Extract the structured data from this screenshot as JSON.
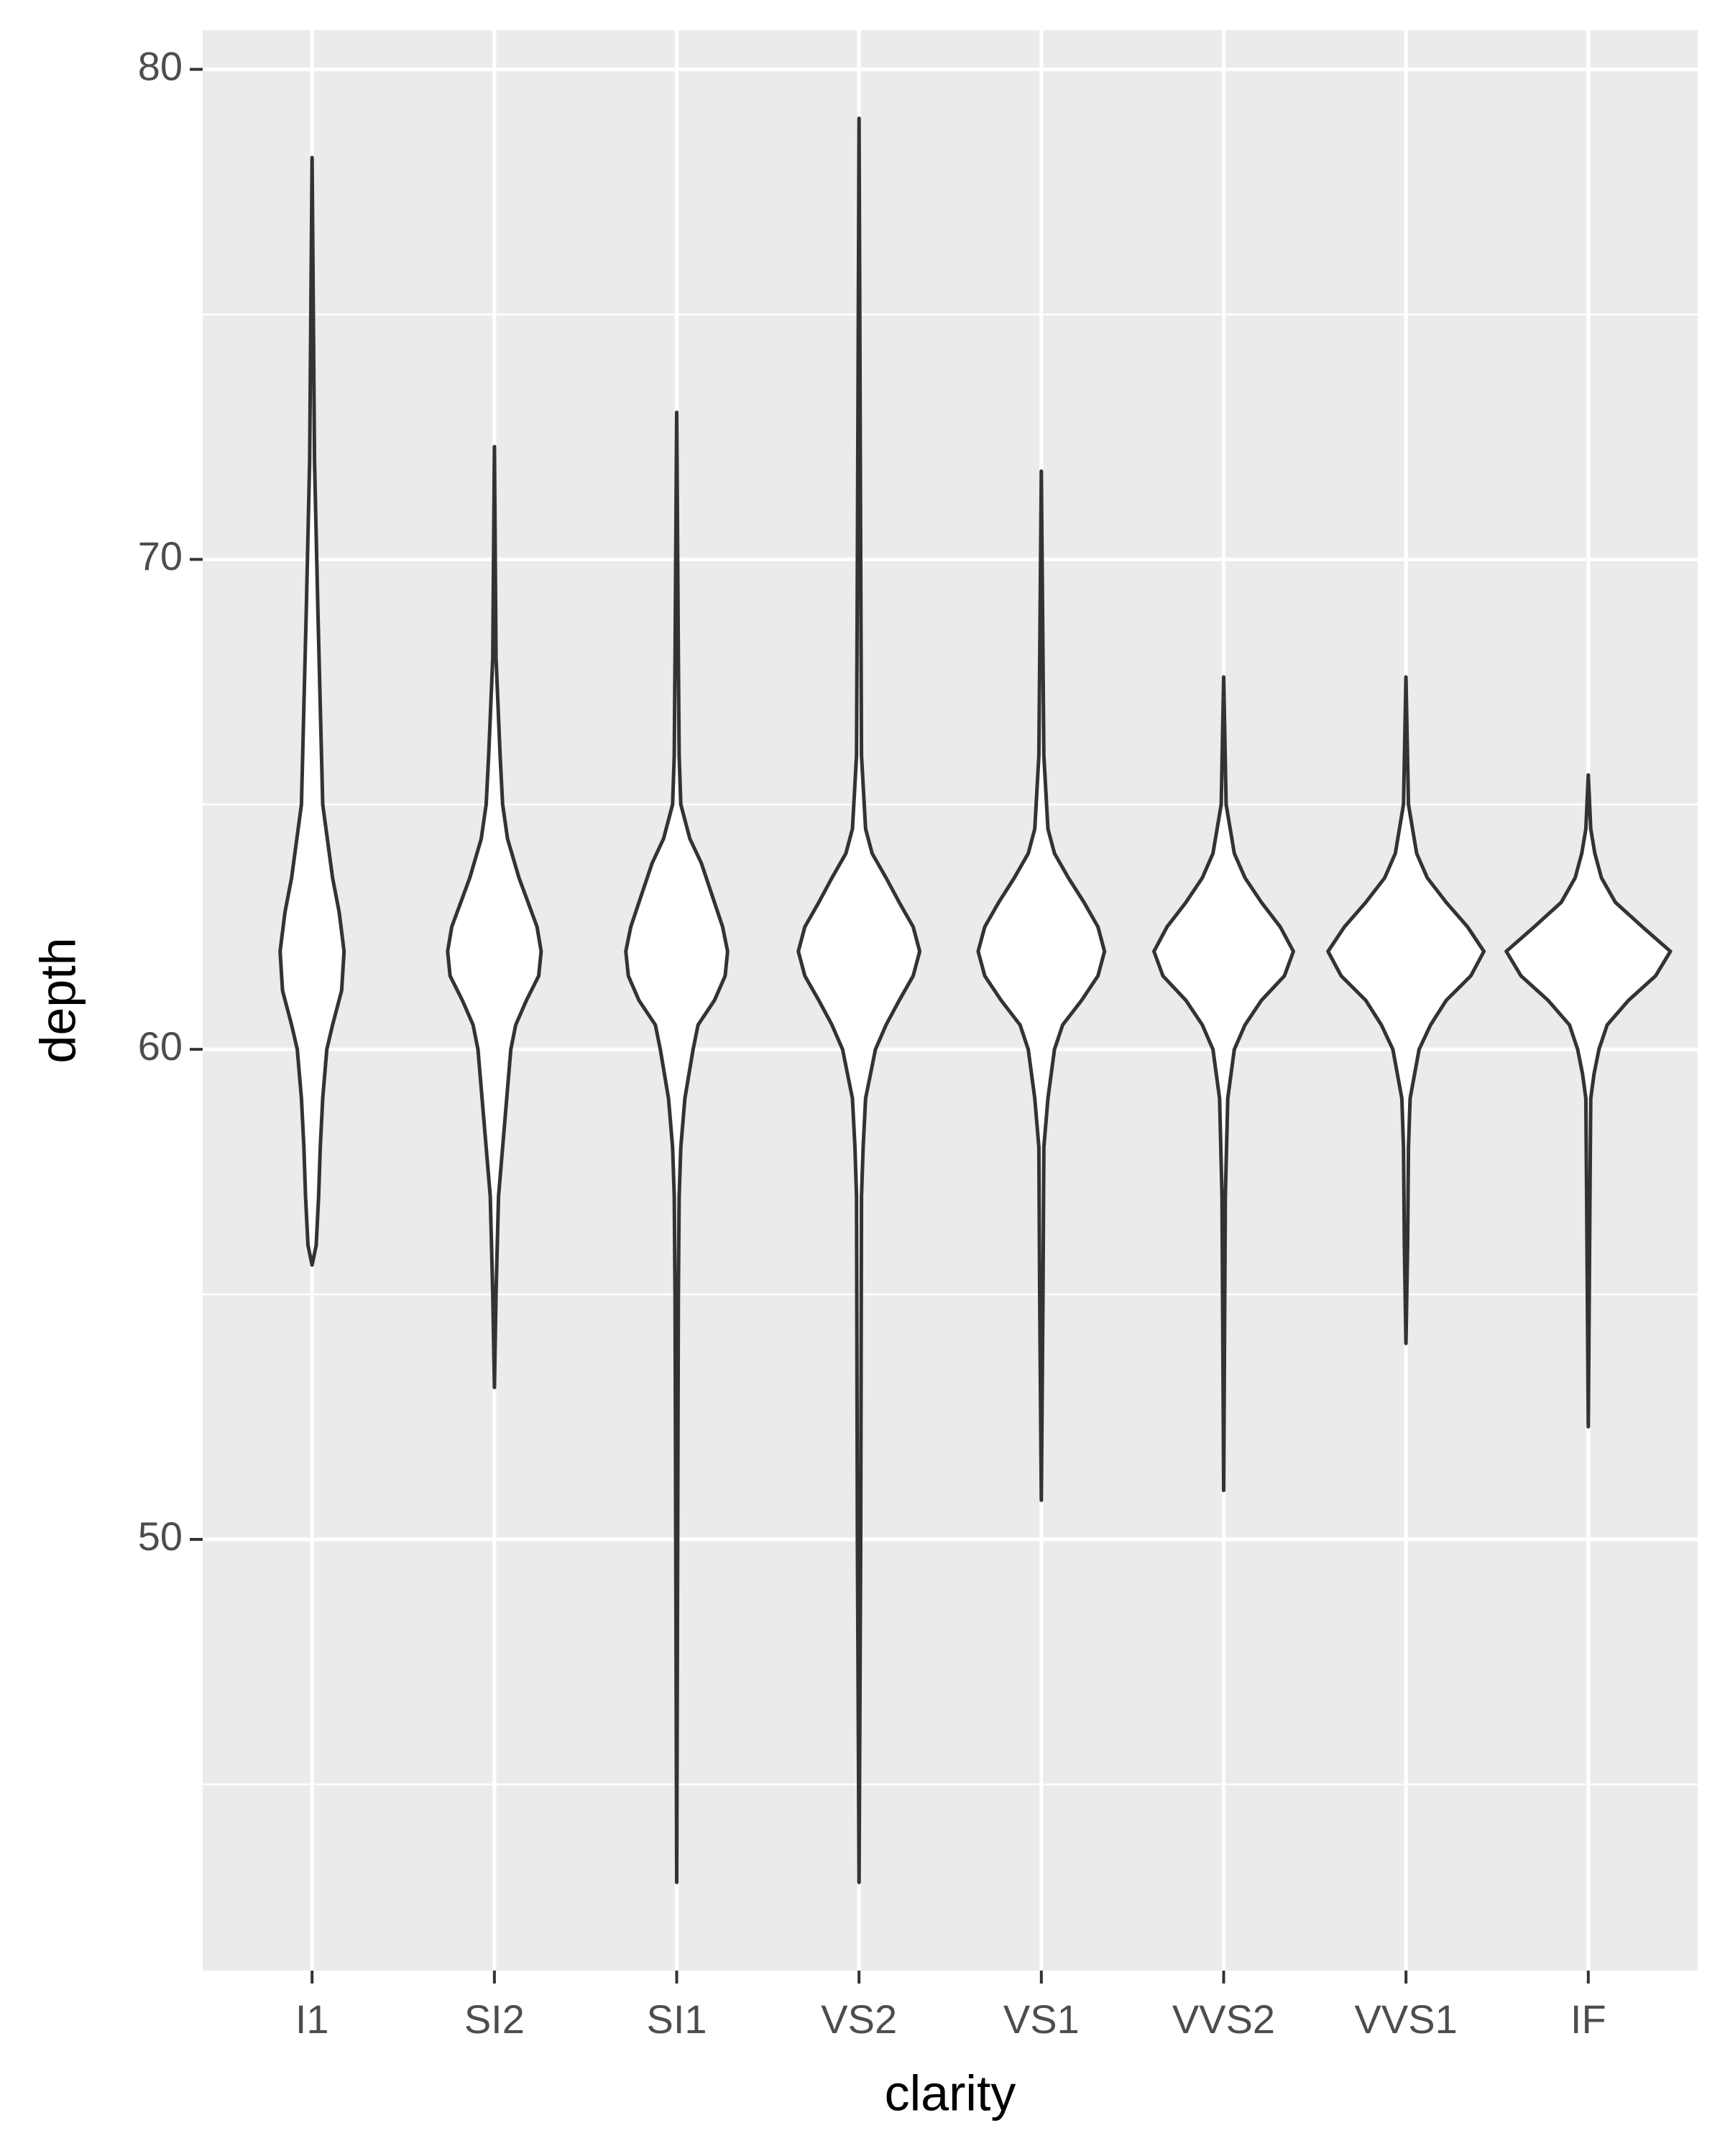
{
  "chart_data": {
    "type": "violin",
    "x_label": "clarity",
    "y_label": "depth",
    "categories": [
      "I1",
      "SI2",
      "SI1",
      "VS2",
      "VS1",
      "VVS2",
      "VVS1",
      "IF"
    ],
    "violins": [
      {
        "y": [
          78.2,
          72,
          69,
          67,
          65,
          63.5,
          62.8,
          62,
          61.2,
          60.5,
          60,
          59,
          58,
          57,
          56,
          55.6
        ],
        "density": [
          0,
          0.03,
          0.07,
          0.1,
          0.13,
          0.25,
          0.33,
          0.39,
          0.36,
          0.25,
          0.18,
          0.13,
          0.1,
          0.08,
          0.05,
          0
        ]
      },
      {
        "y": [
          72.3,
          68,
          66,
          65,
          64.3,
          63.5,
          63,
          62.5,
          62,
          61.5,
          61,
          60.5,
          60,
          59,
          58,
          57,
          55,
          53.1
        ],
        "density": [
          0,
          0.02,
          0.07,
          0.1,
          0.16,
          0.3,
          0.41,
          0.52,
          0.57,
          0.54,
          0.39,
          0.26,
          0.2,
          0.15,
          0.1,
          0.05,
          0.02,
          0
        ]
      },
      {
        "y": [
          73,
          68,
          66,
          65,
          64.3,
          63.8,
          63,
          62.5,
          62,
          61.5,
          61,
          60.5,
          60,
          59,
          58,
          57,
          55,
          43
        ],
        "density": [
          0,
          0.02,
          0.03,
          0.05,
          0.16,
          0.3,
          0.46,
          0.56,
          0.62,
          0.59,
          0.46,
          0.26,
          0.2,
          0.1,
          0.05,
          0.03,
          0.02,
          0
        ]
      },
      {
        "y": [
          79,
          70,
          66,
          64.5,
          64,
          63.5,
          63,
          62.5,
          62,
          61.5,
          61,
          60.5,
          60,
          59,
          58,
          57,
          50,
          43
        ],
        "density": [
          0,
          0.02,
          0.03,
          0.08,
          0.16,
          0.33,
          0.49,
          0.66,
          0.74,
          0.66,
          0.49,
          0.33,
          0.2,
          0.08,
          0.05,
          0.03,
          0.02,
          0
        ]
      },
      {
        "y": [
          71.8,
          66,
          64.5,
          64,
          63.5,
          63,
          62.5,
          62,
          61.5,
          61,
          60.5,
          60,
          59,
          58,
          55,
          50.8
        ],
        "density": [
          0,
          0.03,
          0.08,
          0.16,
          0.33,
          0.52,
          0.69,
          0.77,
          0.69,
          0.49,
          0.26,
          0.16,
          0.08,
          0.03,
          0.02,
          0
        ]
      },
      {
        "y": [
          67.6,
          65,
          64,
          63.5,
          63,
          62.5,
          62,
          61.5,
          61,
          60.5,
          60,
          59,
          57,
          51
        ],
        "density": [
          0,
          0.03,
          0.13,
          0.26,
          0.46,
          0.69,
          0.85,
          0.74,
          0.46,
          0.26,
          0.13,
          0.05,
          0.02,
          0
        ]
      },
      {
        "y": [
          67.6,
          65,
          64,
          63.5,
          63,
          62.5,
          62,
          61.5,
          61,
          60.5,
          60,
          59,
          58,
          56,
          54
        ],
        "density": [
          0,
          0.03,
          0.13,
          0.26,
          0.49,
          0.75,
          0.95,
          0.79,
          0.49,
          0.3,
          0.16,
          0.05,
          0.03,
          0.02,
          0
        ]
      },
      {
        "y": [
          65.6,
          64.5,
          64,
          63.5,
          63,
          62.5,
          62,
          61.5,
          61,
          60.5,
          60,
          59.5,
          59,
          57,
          52.3
        ],
        "density": [
          0,
          0.03,
          0.08,
          0.16,
          0.33,
          0.66,
          1,
          0.82,
          0.49,
          0.23,
          0.13,
          0.07,
          0.03,
          0.02,
          0
        ]
      }
    ],
    "ylim": [
      41.2,
      80.8
    ],
    "yticks": [
      50,
      60,
      70,
      80
    ],
    "minor_yticks": [
      45,
      55,
      65,
      75
    ],
    "grid": true,
    "fill": "#ffffff",
    "color": "#333333",
    "background": "#ebebeb"
  }
}
